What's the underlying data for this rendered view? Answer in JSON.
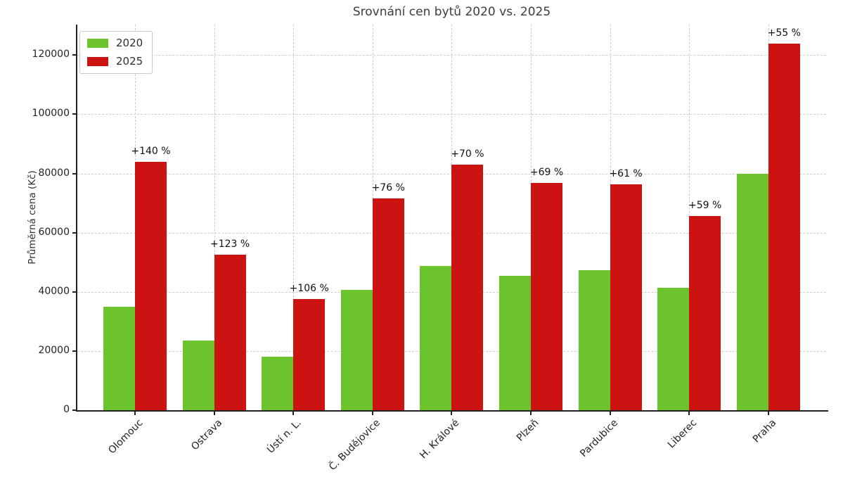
{
  "chart_data": {
    "type": "bar",
    "title": "Srovnání cen bytů 2020 vs. 2025",
    "xlabel": "",
    "ylabel": "Průměrná cena (Kč)",
    "categories": [
      "Olomouc",
      "Ostrava",
      "Ústí n. L.",
      "Č. Budějovice",
      "H. Králové",
      "Plzeň",
      "Pardubice",
      "Liberec",
      "Praha"
    ],
    "series": [
      {
        "name": "2020",
        "color": "#6cc42c",
        "values": [
          35000,
          23500,
          18200,
          40600,
          48800,
          45400,
          47400,
          41300,
          80000
        ]
      },
      {
        "name": "2025",
        "color": "#cd1212",
        "values": [
          84000,
          52500,
          37500,
          71500,
          83000,
          76700,
          76300,
          65700,
          124000
        ]
      }
    ],
    "bar_annotations": [
      "+140 %",
      "+123 %",
      "+106 %",
      "+76 %",
      "+70 %",
      "+69 %",
      "+61 %",
      "+59 %",
      "+55 %"
    ],
    "ylim": [
      0,
      130300
    ],
    "yticks": [
      0,
      20000,
      40000,
      60000,
      80000,
      100000,
      120000
    ],
    "grid": "dashed gray, horizontal at yticks and vertical at category centers",
    "legend_position": "upper left",
    "colors": {
      "grid": "#cdcdcd",
      "spine": "#222222",
      "tick_text": "#222222",
      "title_text": "#3d3d3d",
      "annotation_text": "#111111",
      "background": "#ffffff"
    }
  }
}
